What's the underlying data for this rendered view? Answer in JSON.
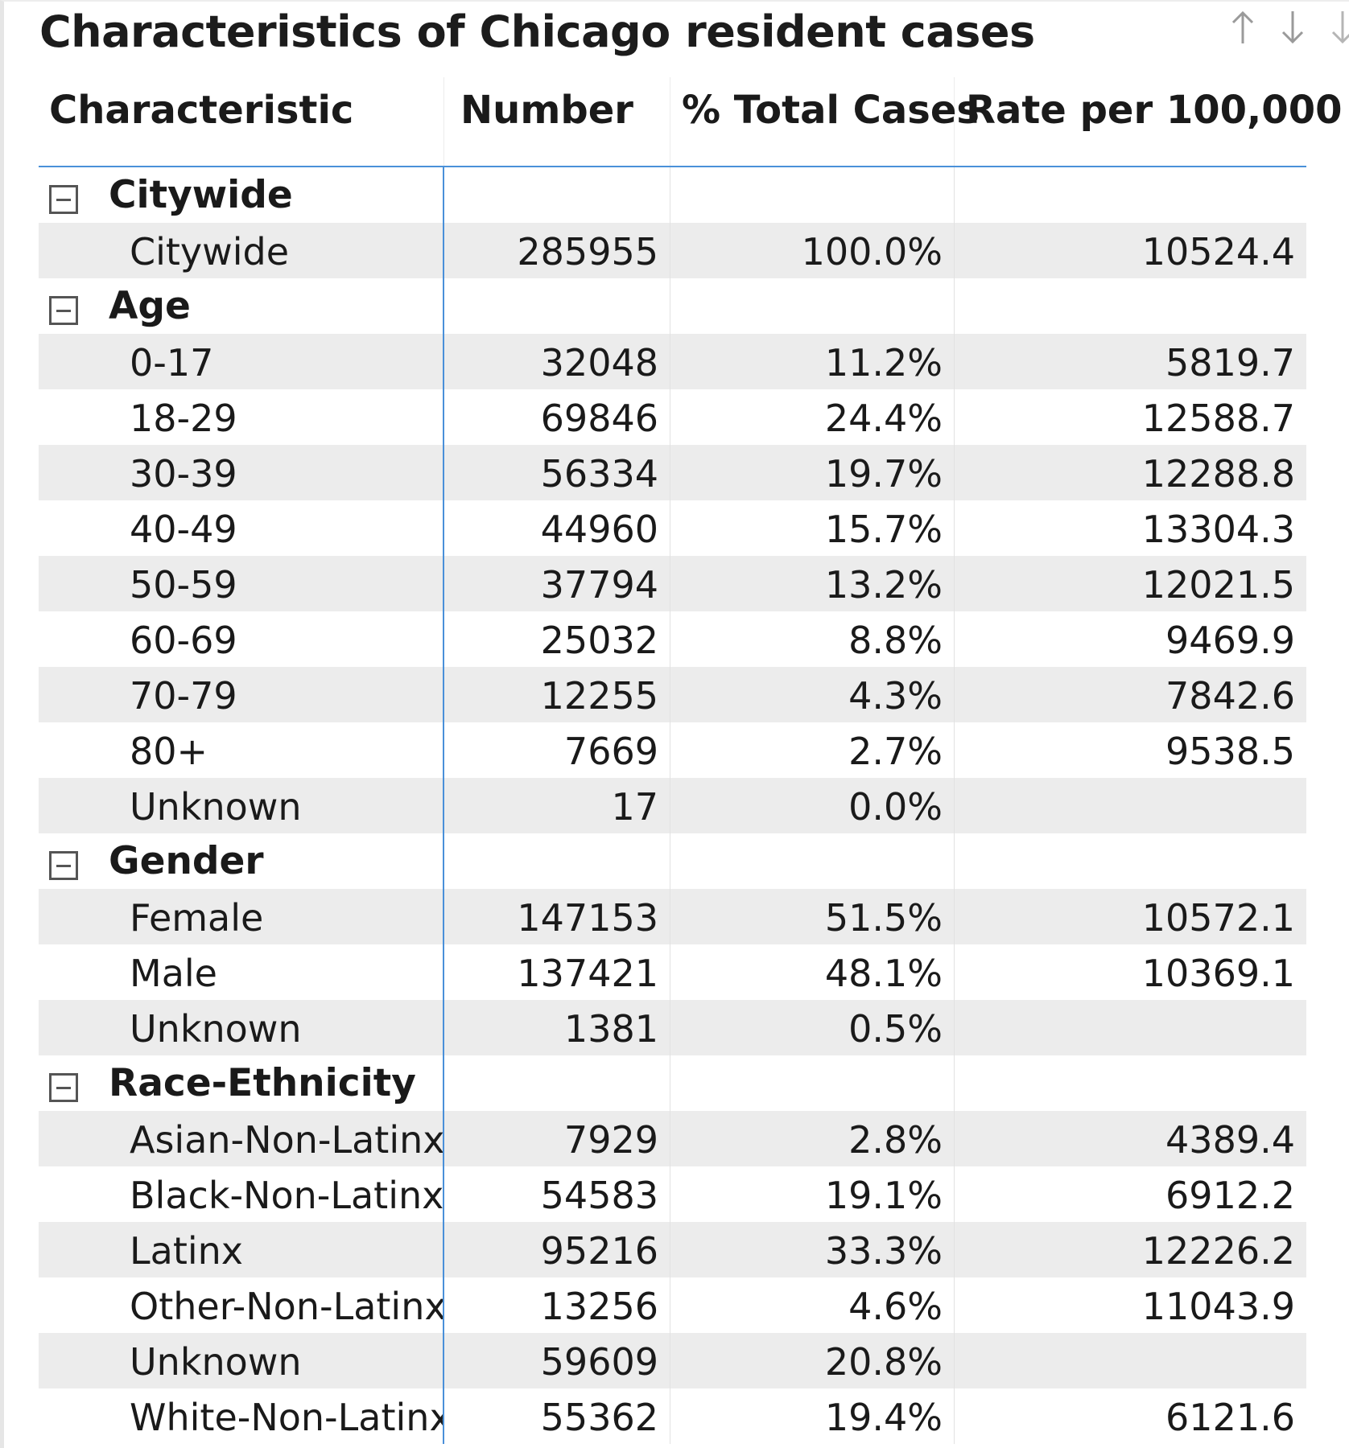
{
  "title": "Characteristics of Chicago resident cases",
  "header_icons": [
    "arrow-up-icon",
    "arrow-down-icon",
    "arrow-down-partial-icon"
  ],
  "columns": [
    "Characteristic",
    "Number",
    "% Total Cases",
    "Rate per 100,000"
  ],
  "groups": [
    {
      "label": "Citywide",
      "rows": [
        {
          "characteristic": "Citywide",
          "number": "285955",
          "pct": "100.0%",
          "rate": "10524.4"
        }
      ]
    },
    {
      "label": "Age",
      "rows": [
        {
          "characteristic": "0-17",
          "number": "32048",
          "pct": "11.2%",
          "rate": "5819.7"
        },
        {
          "characteristic": "18-29",
          "number": "69846",
          "pct": "24.4%",
          "rate": "12588.7"
        },
        {
          "characteristic": "30-39",
          "number": "56334",
          "pct": "19.7%",
          "rate": "12288.8"
        },
        {
          "characteristic": "40-49",
          "number": "44960",
          "pct": "15.7%",
          "rate": "13304.3"
        },
        {
          "characteristic": "50-59",
          "number": "37794",
          "pct": "13.2%",
          "rate": "12021.5"
        },
        {
          "characteristic": "60-69",
          "number": "25032",
          "pct": "8.8%",
          "rate": "9469.9"
        },
        {
          "characteristic": "70-79",
          "number": "12255",
          "pct": "4.3%",
          "rate": "7842.6"
        },
        {
          "characteristic": "80+",
          "number": "7669",
          "pct": "2.7%",
          "rate": "9538.5"
        },
        {
          "characteristic": "Unknown",
          "number": "17",
          "pct": "0.0%",
          "rate": ""
        }
      ]
    },
    {
      "label": "Gender",
      "rows": [
        {
          "characteristic": "Female",
          "number": "147153",
          "pct": "51.5%",
          "rate": "10572.1"
        },
        {
          "characteristic": "Male",
          "number": "137421",
          "pct": "48.1%",
          "rate": "10369.1"
        },
        {
          "characteristic": "Unknown",
          "number": "1381",
          "pct": "0.5%",
          "rate": ""
        }
      ]
    },
    {
      "label": "Race-Ethnicity",
      "rows": [
        {
          "characteristic": "Asian-Non-Latinx",
          "number": "7929",
          "pct": "2.8%",
          "rate": "4389.4"
        },
        {
          "characteristic": "Black-Non-Latinx",
          "number": "54583",
          "pct": "19.1%",
          "rate": "6912.2"
        },
        {
          "characteristic": "Latinx",
          "number": "95216",
          "pct": "33.3%",
          "rate": "12226.2"
        },
        {
          "characteristic": "Other-Non-Latinx",
          "number": "13256",
          "pct": "4.6%",
          "rate": "11043.9"
        },
        {
          "characteristic": "Unknown",
          "number": "59609",
          "pct": "20.8%",
          "rate": ""
        },
        {
          "characteristic": "White-Non-Latinx",
          "number": "55362",
          "pct": "19.4%",
          "rate": "6121.6"
        }
      ]
    }
  ]
}
